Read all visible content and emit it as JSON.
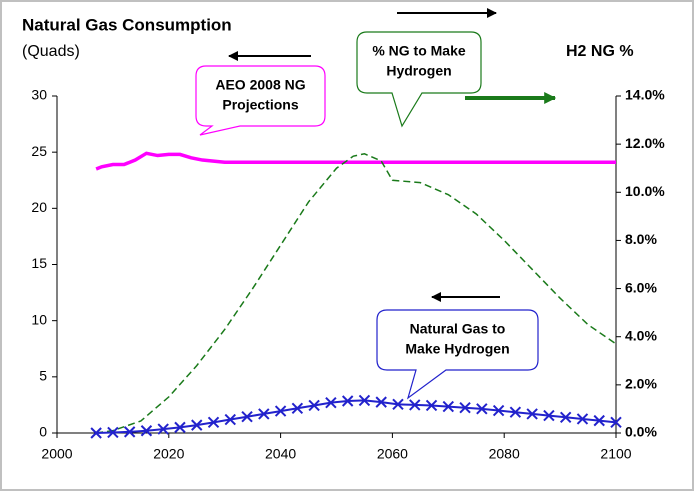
{
  "chart_data": {
    "type": "line",
    "title": "Natural Gas Consumption",
    "subtitle": "(Quads)",
    "y2_title": "H2 NG %",
    "xlim": [
      2000,
      2100
    ],
    "xticks": [
      2000,
      2020,
      2040,
      2060,
      2080,
      2100
    ],
    "ylim": [
      0,
      30
    ],
    "yticks": [
      0,
      5,
      10,
      15,
      20,
      25,
      30
    ],
    "y2lim": [
      0,
      14
    ],
    "y2ticks": [
      {
        "value": 0,
        "label": "0.0%"
      },
      {
        "value": 2,
        "label": "2.0%"
      },
      {
        "value": 4,
        "label": "4.0%"
      },
      {
        "value": 6,
        "label": "6.0%"
      },
      {
        "value": 8,
        "label": "8.0%"
      },
      {
        "value": 10,
        "label": "10.0%"
      },
      {
        "value": 12,
        "label": "12.0%"
      },
      {
        "value": 14,
        "label": "14.0%"
      }
    ],
    "series": [
      {
        "color": "#ff00ff",
        "style": "solid",
        "x": [
          2007,
          2008,
          2010,
          2012,
          2014,
          2016,
          2018,
          2020,
          2022,
          2024,
          2026,
          2028,
          2030,
          2100
        ],
        "values": [
          23.5,
          23.7,
          23.9,
          23.9,
          24.3,
          24.9,
          24.7,
          24.8,
          24.8,
          24.5,
          24.3,
          24.2,
          24.1,
          24.1
        ]
      },
      {
        "color": "#1a7a1a",
        "style": "dashed",
        "axis": "y2",
        "x": [
          2007,
          2010,
          2015,
          2020,
          2025,
          2030,
          2035,
          2040,
          2045,
          2050,
          2053,
          2055,
          2058,
          2060,
          2065,
          2070,
          2075,
          2080,
          2085,
          2090,
          2095,
          2100
        ],
        "values": [
          0,
          0.1,
          0.5,
          1.5,
          2.8,
          4.3,
          6.0,
          7.8,
          9.6,
          11.0,
          11.5,
          11.6,
          11.3,
          10.5,
          10.4,
          9.9,
          9.1,
          8.0,
          6.8,
          5.6,
          4.5,
          3.7
        ]
      },
      {
        "color": "#2222cc",
        "style": "markers",
        "x": [
          2007,
          2010,
          2013,
          2016,
          2019,
          2022,
          2025,
          2028,
          2031,
          2034,
          2037,
          2040,
          2043,
          2046,
          2049,
          2052,
          2055,
          2058,
          2061,
          2064,
          2067,
          2070,
          2073,
          2076,
          2079,
          2082,
          2085,
          2088,
          2091,
          2094,
          2097,
          2100
        ],
        "values": [
          0,
          0.05,
          0.1,
          0.2,
          0.35,
          0.5,
          0.7,
          0.95,
          1.2,
          1.45,
          1.7,
          1.95,
          2.2,
          2.45,
          2.7,
          2.85,
          2.9,
          2.75,
          2.55,
          2.5,
          2.45,
          2.35,
          2.25,
          2.15,
          2.0,
          1.85,
          1.7,
          1.55,
          1.4,
          1.25,
          1.1,
          0.95
        ]
      }
    ],
    "annotations": [
      {
        "lines": [
          "AEO 2008 NG",
          "Projections"
        ]
      },
      {
        "lines": [
          "% NG to Make",
          "Hydrogen"
        ]
      },
      {
        "lines": [
          "Natural Gas to",
          "Make Hydrogen"
        ]
      }
    ]
  }
}
